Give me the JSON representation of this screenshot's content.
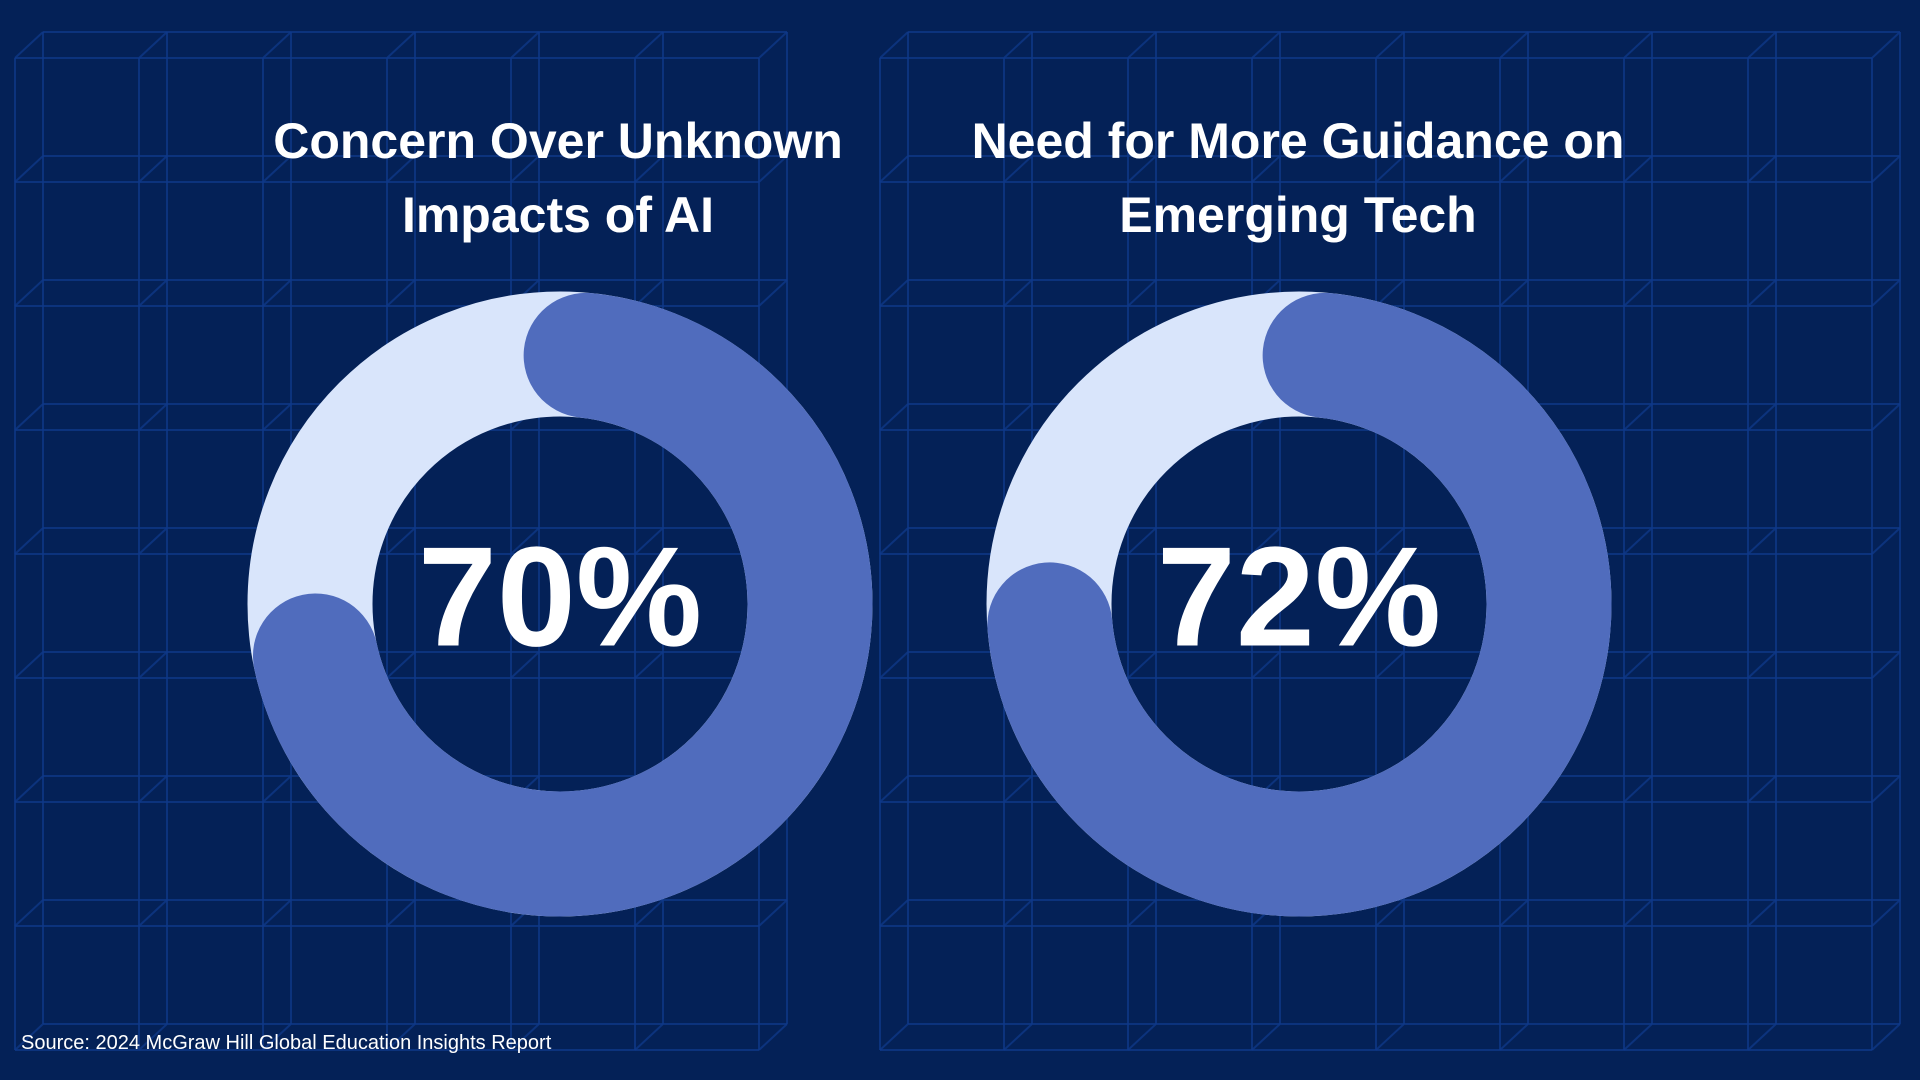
{
  "colors": {
    "background": "#042157",
    "grid_line": "#0f3a8a",
    "track": "#d9e5fb",
    "arc": "#506cbd",
    "text": "#ffffff"
  },
  "chart_data": [
    {
      "type": "pie",
      "title": "Concern Over Unknown Impacts of AI",
      "value_label": "70%",
      "values": [
        70,
        30
      ],
      "categories": [
        "",
        ""
      ]
    },
    {
      "type": "pie",
      "title": "Need for More Guidance on Emerging Tech",
      "value_label": "72%",
      "values": [
        72,
        28
      ],
      "categories": [
        "",
        ""
      ]
    }
  ],
  "footer": {
    "source": "Source: 2024 McGraw Hill Global Education Insights Report"
  }
}
